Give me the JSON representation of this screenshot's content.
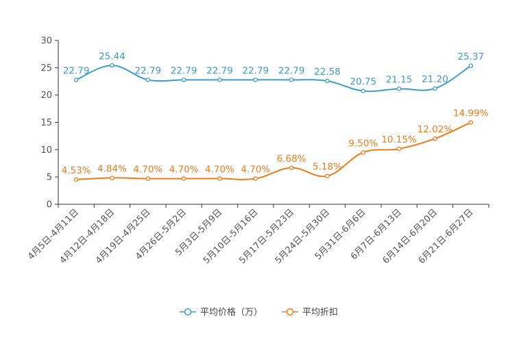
{
  "chart_data": {
    "type": "line",
    "title": "",
    "xlabel": "",
    "ylabel": "",
    "ylim": [
      0,
      30
    ],
    "yticks": [
      0,
      5,
      10,
      15,
      20,
      25,
      30
    ],
    "categories": [
      "4月5日-4月11日",
      "4月12日-4月18日",
      "4月19日-4月25日",
      "4月26日-5月2日",
      "5月3日-5月9日",
      "5月10日-5月16日",
      "5月17日-5月23日",
      "5月24日-5月30日",
      "5月31日-6月6日",
      "6月7日-6月13日",
      "6月14日-6月20日",
      "6月21日-6月27日"
    ],
    "series": [
      {
        "name": "平均价格（万）",
        "color": "#3d9cca",
        "values": [
          22.79,
          25.44,
          22.79,
          22.79,
          22.79,
          22.79,
          22.79,
          22.58,
          20.75,
          21.15,
          21.2,
          25.37
        ],
        "labels": [
          "22.79",
          "25.44",
          "22.79",
          "22.79",
          "22.79",
          "22.79",
          "22.79",
          "22.58",
          "20.75",
          "21.15",
          "21.20",
          "25.37"
        ]
      },
      {
        "name": "平均折扣",
        "color": "#f07b1c",
        "values": [
          4.53,
          4.84,
          4.7,
          4.7,
          4.7,
          4.7,
          6.68,
          5.18,
          9.5,
          10.15,
          12.02,
          14.99
        ],
        "labels": [
          "4.53%",
          "4.84%",
          "4.70%",
          "4.70%",
          "4.70%",
          "4.70%",
          "6.68%",
          "5.18%",
          "9.50%",
          "10.15%",
          "12.02%",
          "14.99%"
        ]
      }
    ],
    "grid": false,
    "legend_position": "bottom-center"
  }
}
